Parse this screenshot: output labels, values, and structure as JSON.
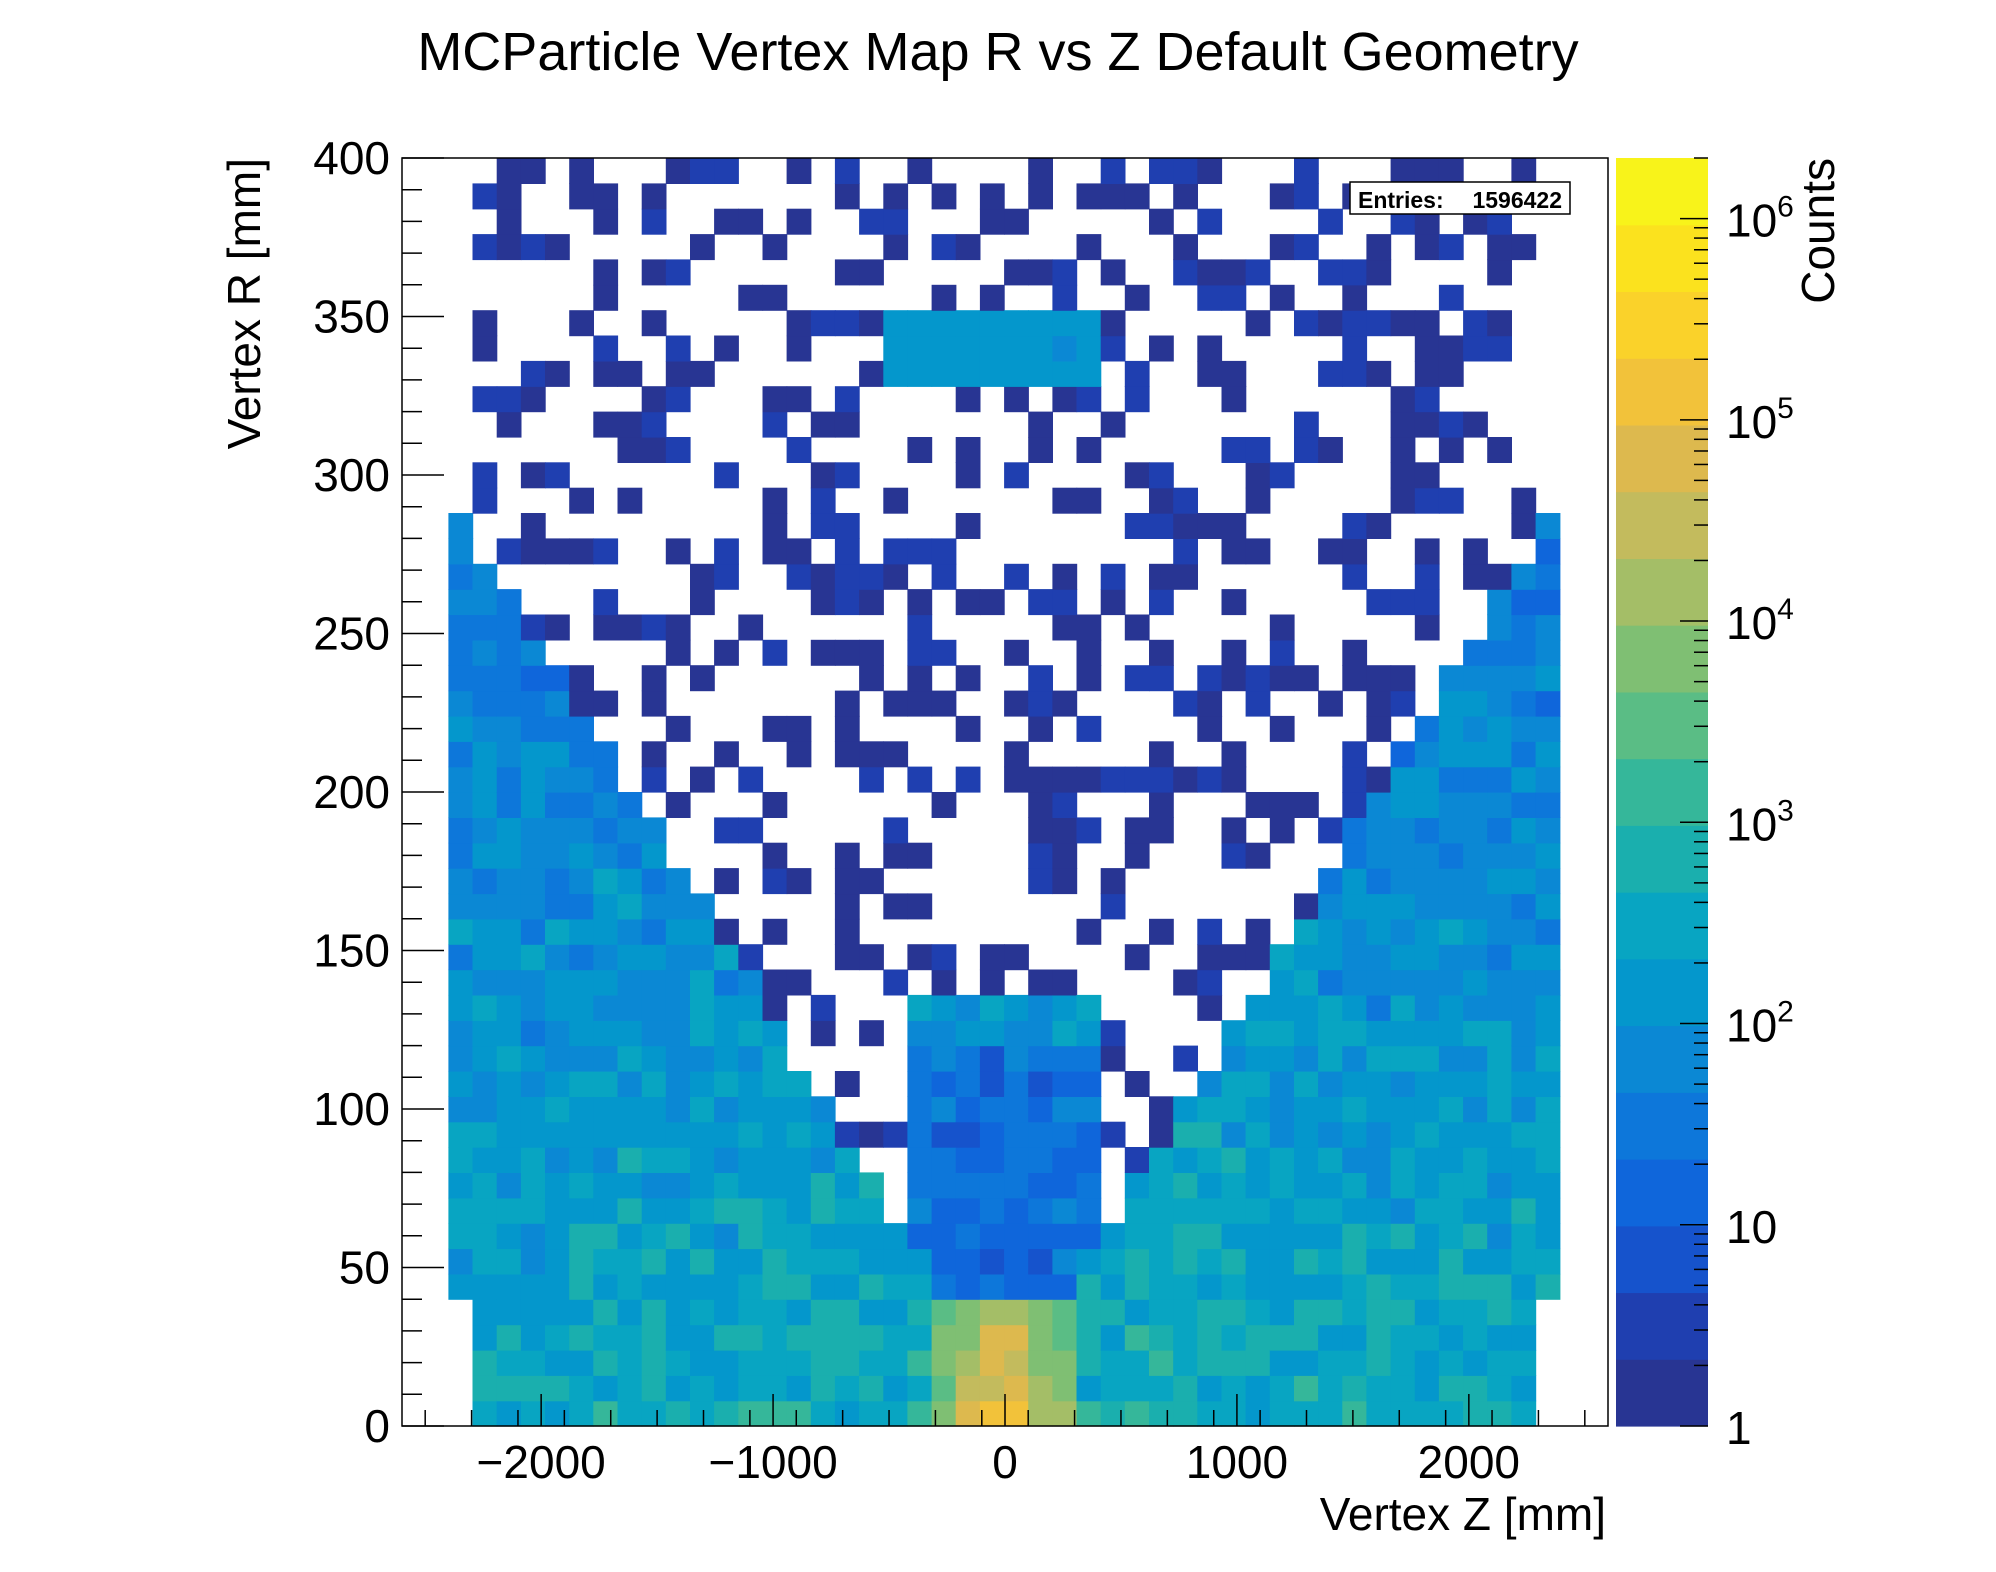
{
  "chart_data": {
    "type": "heatmap",
    "title": "MCParticle Vertex Map R vs Z Default Geometry",
    "xlabel": "Vertex Z [mm]",
    "ylabel": "Vertex R [mm]",
    "zlabel": "Counts",
    "xlim": [
      -2600,
      2600
    ],
    "ylim": [
      0,
      400
    ],
    "zlim": [
      1,
      2000000
    ],
    "zscale": "log",
    "x_ticks": [
      -2000,
      -1000,
      0,
      1000,
      2000
    ],
    "x_tick_labels": [
      "−2000",
      "−1000",
      "0",
      "1000",
      "2000"
    ],
    "y_ticks": [
      0,
      50,
      100,
      150,
      200,
      250,
      300,
      350,
      400
    ],
    "y_tick_labels": [
      "0",
      "50",
      "100",
      "150",
      "200",
      "250",
      "300",
      "350",
      "400"
    ],
    "z_tick_labels": [
      {
        "value": 1,
        "base": "1",
        "exp": ""
      },
      {
        "value": 10,
        "base": "10",
        "exp": ""
      },
      {
        "value": 100,
        "base": "10",
        "exp": "2"
      },
      {
        "value": 1000,
        "base": "10",
        "exp": "3"
      },
      {
        "value": 10000,
        "base": "10",
        "exp": "4"
      },
      {
        "value": 100000,
        "base": "10",
        "exp": "5"
      },
      {
        "value": 1000000,
        "base": "10",
        "exp": "6"
      }
    ],
    "stats": {
      "entries_label": "Entries:",
      "entries": "1596422"
    },
    "bins": {
      "x_start": -2400,
      "x_width": 104.17,
      "nx": 46,
      "y_start": 0,
      "y_width": 8,
      "ny": 50,
      "note_z": "log10 counts per bin approximated from colour scale"
    },
    "grid": false,
    "legend": "colour bar on right",
    "colors": {
      "palette": [
        "#283593",
        "#1f3fb0",
        "#1653cc",
        "#0f66db",
        "#0d77da",
        "#0b88d4",
        "#0497cc",
        "#08a5c2",
        "#1aafae",
        "#35b79a",
        "#5abd85",
        "#7fbf73",
        "#a4be67",
        "#c3bb5d",
        "#ddb94e",
        "#f2c23a",
        "#fad22a",
        "#fbe21e",
        "#f8f31a"
      ],
      "frame": "#000000",
      "background": "#ffffff"
    }
  }
}
